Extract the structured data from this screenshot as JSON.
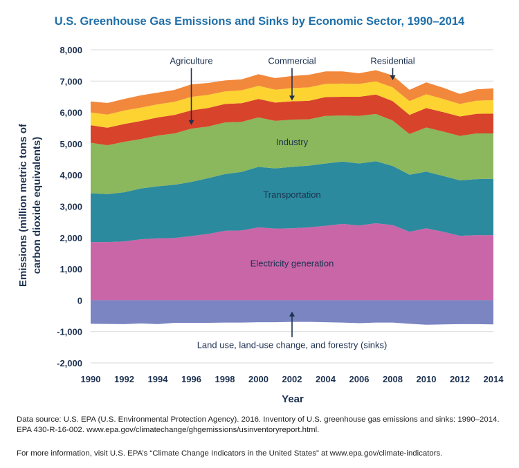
{
  "chart_data": {
    "type": "area",
    "title": "U.S. Greenhouse Gas Emissions and Sinks by Economic Sector, 1990–2014",
    "xlabel": "Year",
    "ylabel": "Emissions (million metric tons of carbon dioxide equivalents)",
    "ylabel_lines": [
      "Emissions (million metric tons of",
      "carbon dioxide equivalents)"
    ],
    "xlim": [
      1990,
      2014
    ],
    "ylim": [
      -2000,
      8000
    ],
    "grid": true,
    "x": [
      1990,
      1991,
      1992,
      1993,
      1994,
      1995,
      1996,
      1997,
      1998,
      1999,
      2000,
      2001,
      2002,
      2003,
      2004,
      2005,
      2006,
      2007,
      2008,
      2009,
      2010,
      2011,
      2012,
      2013,
      2014
    ],
    "x_ticks": [
      "1990",
      "1992",
      "1994",
      "1996",
      "1998",
      "2000",
      "2002",
      "2004",
      "2006",
      "2008",
      "2010",
      "2012",
      "2014"
    ],
    "y_ticks": [
      "8,000",
      "7,000",
      "6,000",
      "5,000",
      "4,000",
      "3,000",
      "2,000",
      "1,000",
      "0",
      "-1,000",
      "-2,000"
    ],
    "series": [
      {
        "name": "Electricity generation",
        "color": "#c966a8",
        "values": [
          1860,
          1860,
          1880,
          1950,
          1980,
          1990,
          2050,
          2120,
          2220,
          2230,
          2330,
          2290,
          2300,
          2330,
          2380,
          2440,
          2390,
          2460,
          2400,
          2190,
          2300,
          2190,
          2060,
          2080,
          2080
        ]
      },
      {
        "name": "Transportation",
        "color": "#2b8a9d",
        "values": [
          1560,
          1530,
          1570,
          1620,
          1660,
          1700,
          1730,
          1780,
          1810,
          1870,
          1930,
          1920,
          1960,
          1970,
          1990,
          1990,
          1980,
          1980,
          1890,
          1820,
          1810,
          1780,
          1770,
          1790,
          1800
        ]
      },
      {
        "name": "Industry",
        "color": "#8bb75d",
        "values": [
          1610,
          1560,
          1610,
          1580,
          1620,
          1640,
          1700,
          1650,
          1650,
          1600,
          1580,
          1520,
          1510,
          1480,
          1520,
          1470,
          1520,
          1510,
          1450,
          1300,
          1410,
          1420,
          1420,
          1460,
          1450
        ]
      },
      {
        "name": "Agriculture",
        "color": "#d8432b",
        "values": [
          560,
          560,
          570,
          575,
          580,
          590,
          585,
          590,
          590,
          595,
          590,
          585,
          585,
          590,
          600,
          600,
          610,
          620,
          620,
          610,
          620,
          620,
          620,
          625,
          630
        ]
      },
      {
        "name": "Commercial",
        "color": "#fdd331",
        "values": [
          410,
          420,
          430,
          430,
          420,
          420,
          430,
          420,
          400,
          410,
          420,
          410,
          420,
          430,
          420,
          420,
          410,
          420,
          440,
          440,
          440,
          420,
          400,
          420,
          430
        ]
      },
      {
        "name": "Residential",
        "color": "#f2883c",
        "values": [
          350,
          370,
          370,
          390,
          370,
          380,
          400,
          380,
          350,
          350,
          370,
          370,
          390,
          400,
          400,
          390,
          340,
          360,
          380,
          360,
          380,
          360,
          320,
          360,
          380
        ]
      },
      {
        "name": "Land use, land-use change, and forestry (sinks)",
        "color": "#7a85c2",
        "values": [
          -750,
          -755,
          -760,
          -740,
          -760,
          -720,
          -720,
          -720,
          -710,
          -710,
          -700,
          -700,
          -690,
          -690,
          -700,
          -710,
          -730,
          -710,
          -710,
          -750,
          -780,
          -770,
          -760,
          -760,
          -770
        ]
      }
    ],
    "annotations": [
      {
        "text": "Agriculture",
        "x": 1996,
        "y": 7550,
        "arrow_to": 5600
      },
      {
        "text": "Commercial",
        "x": 2002,
        "y": 7550,
        "arrow_to": 6380
      },
      {
        "text": "Residential",
        "x": 2008,
        "y": 7550,
        "arrow_to": 7030
      },
      {
        "text": "Industry",
        "x": 2002,
        "y": 4950
      },
      {
        "text": "Transportation",
        "x": 2002,
        "y": 3280
      },
      {
        "text": "Electricity generation",
        "x": 2002,
        "y": 1080
      },
      {
        "text": "Land use, land-use change, and forestry (sinks)",
        "x": 2002,
        "y": -1530,
        "arrow_to": -360
      }
    ]
  },
  "footnotes": {
    "source": "Data source: U.S. EPA (U.S. Environmental Protection Agency). 2016. Inventory of U.S. greenhouse gas emissions and sinks: 1990–2014. EPA 430-R-16-002. www.epa.gov/climatechange/ghgemissions/usinventoryreport.html.",
    "more_info": "For more information, visit U.S. EPA’s “Climate Change Indicators in the United States” at www.epa.gov/climate-indicators."
  }
}
